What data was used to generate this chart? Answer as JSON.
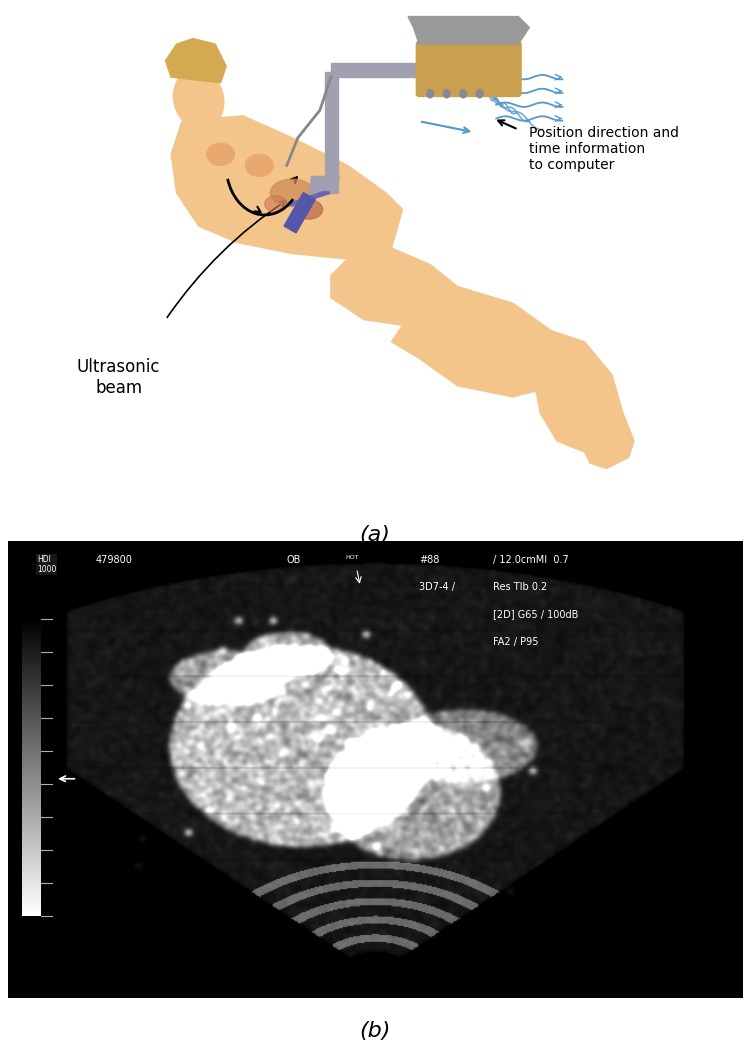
{
  "figure_width": 7.5,
  "figure_height": 10.4,
  "dpi": 100,
  "bg_color": "#ffffff",
  "label_a": "(a)",
  "label_b": "(b)",
  "label_a_fontsize": 16,
  "label_b_fontsize": 16,
  "annotation_ultrasonic": "Ultrasonic\nbeam",
  "annotation_position": "Position direction and\ntime information\nto computer",
  "us_text_top_left": "HDI\n1000",
  "us_text_number": "479800",
  "us_text_ob": "OB",
  "us_text_hash": "#88",
  "us_text_freq": "/ 12.0cmMI  0.7",
  "us_text_3d": "3D7-4 /",
  "us_text_res": "Res TIb 0.2",
  "us_text_2d": "[2D] G65 / 100dB",
  "us_text_fa": "FA2 / P95",
  "skin_color": "#F4C58A",
  "probe_color_body": "#C8A050",
  "probe_color_dark": "#8B6914",
  "arm_color": "#A0A0B0",
  "beam_color": "#6666BB",
  "wave_color": "#5599CC",
  "arrow_color": "#000000",
  "ultrasound_bg": "#000000"
}
